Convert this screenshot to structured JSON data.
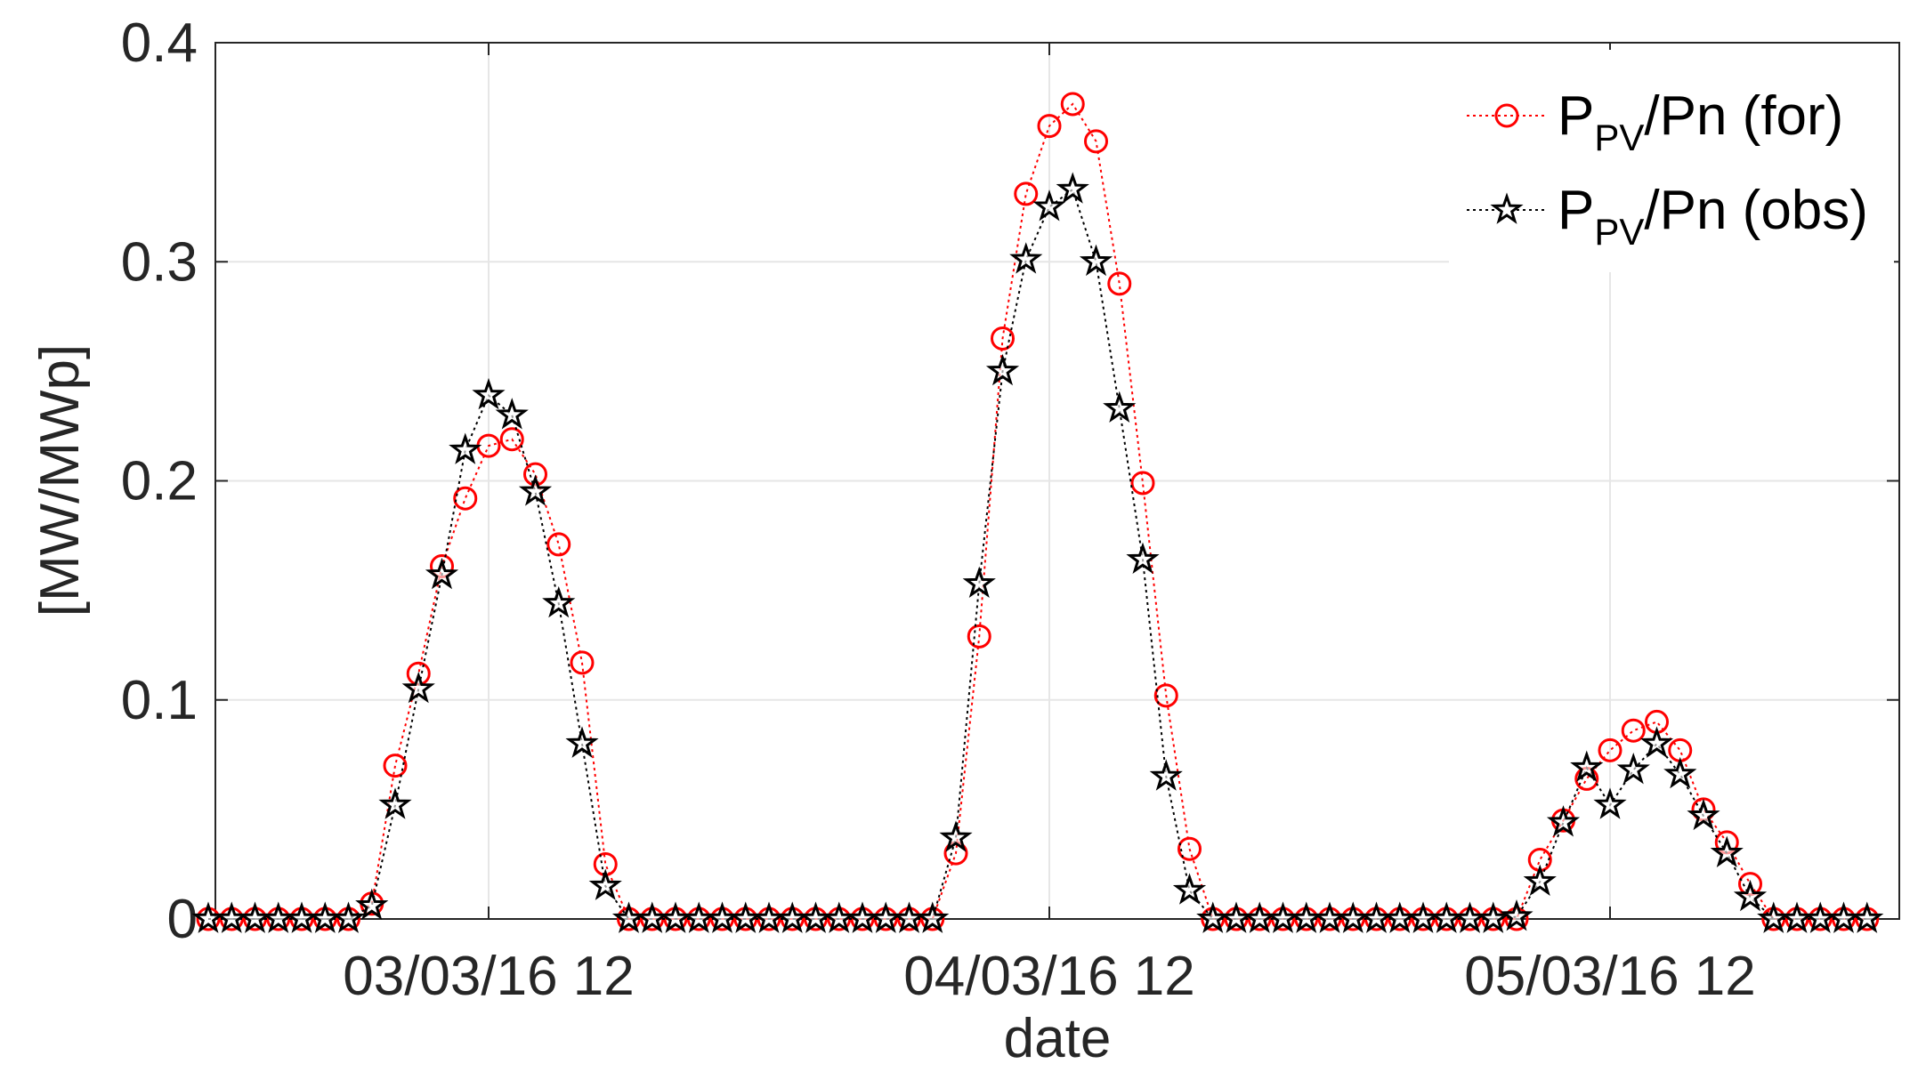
{
  "chart_data": {
    "type": "line",
    "xlabel": "date",
    "ylabel": "[MW/MWp]",
    "x_tick_labels": [
      "03/03/16 12",
      "04/03/16 12",
      "05/03/16 12"
    ],
    "y_tick_labels": [
      "0",
      "0.1",
      "0.2",
      "0.3",
      "0.4"
    ],
    "ylim": [
      0,
      0.4
    ],
    "xlim": [
      "03/03/16 00",
      "05/03/16 23"
    ],
    "time_step_hours": 1,
    "grid": true,
    "legend_position": "top-right",
    "legend": [
      {
        "base": "P",
        "sub": "PV",
        "rest": "/Pn  (for)"
      },
      {
        "base": "P",
        "sub": "PV",
        "rest": "/Pn (obs)"
      }
    ],
    "series": [
      {
        "name": "P_PV/Pn (for)",
        "color": "#ff0000",
        "marker": "circle",
        "line_style": "dotted",
        "values": [
          0,
          0,
          0,
          0,
          0,
          0,
          0,
          0.007,
          0.07,
          0.112,
          0.161,
          0.192,
          0.216,
          0.219,
          0.203,
          0.171,
          0.117,
          0.025,
          0,
          0,
          0,
          0,
          0,
          0,
          0,
          0,
          0,
          0,
          0,
          0,
          0,
          0,
          0.03,
          0.129,
          0.265,
          0.331,
          0.362,
          0.372,
          0.355,
          0.29,
          0.199,
          0.102,
          0.032,
          0,
          0,
          0,
          0,
          0,
          0,
          0,
          0,
          0,
          0,
          0,
          0,
          0,
          0,
          0.027,
          0.045,
          0.064,
          0.077,
          0.086,
          0.09,
          0.077,
          0.05,
          0.035,
          0.016,
          0,
          0,
          0,
          0,
          0
        ]
      },
      {
        "name": "P_PV/Pn (obs)",
        "color": "#000000",
        "marker": "star",
        "line_style": "dotted",
        "values": [
          0,
          0,
          0,
          0,
          0,
          0,
          0,
          0.006,
          0.052,
          0.105,
          0.157,
          0.214,
          0.239,
          0.23,
          0.195,
          0.144,
          0.08,
          0.015,
          0,
          0,
          0,
          0,
          0,
          0,
          0,
          0,
          0,
          0,
          0,
          0,
          0,
          0,
          0.037,
          0.153,
          0.25,
          0.301,
          0.325,
          0.333,
          0.3,
          0.233,
          0.164,
          0.065,
          0.013,
          0,
          0,
          0,
          0,
          0,
          0,
          0,
          0,
          0,
          0,
          0,
          0,
          0,
          0.001,
          0.017,
          0.044,
          0.069,
          0.052,
          0.068,
          0.08,
          0.066,
          0.047,
          0.03,
          0.01,
          0,
          0,
          0,
          0,
          0
        ]
      }
    ]
  }
}
